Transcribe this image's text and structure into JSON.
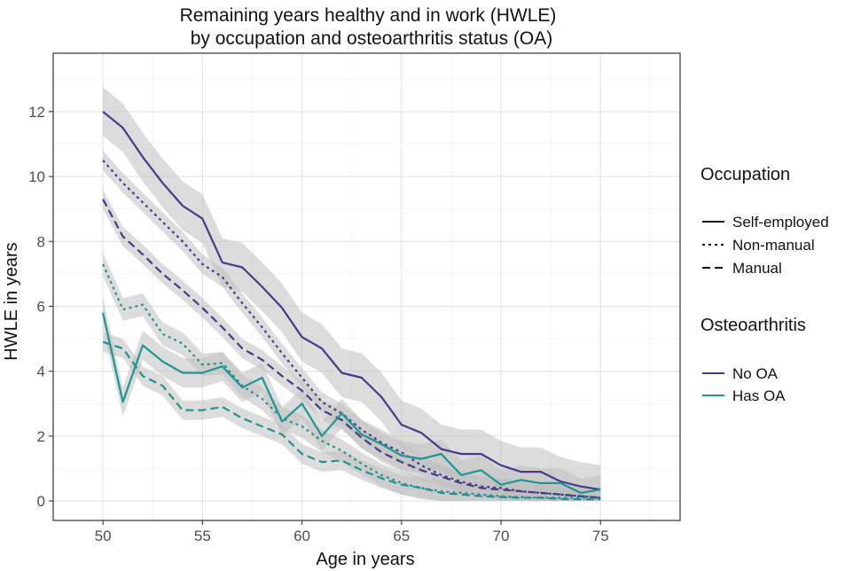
{
  "chart_data": {
    "type": "line",
    "title_lines": [
      "Remaining years healthy and in work (HWLE)",
      "by occupation and osteoarthritis status (OA)"
    ],
    "xlabel": "Age in years",
    "ylabel": "HWLE in years",
    "xlim": [
      47.5,
      79
    ],
    "ylim": [
      -0.6,
      13.8
    ],
    "xticks": [
      50,
      55,
      60,
      65,
      70,
      75
    ],
    "yticks": [
      0,
      2,
      4,
      6,
      8,
      10,
      12
    ],
    "grid": true,
    "legend_position": "right",
    "x": [
      50,
      51,
      52,
      53,
      54,
      55,
      56,
      57,
      58,
      59,
      60,
      61,
      62,
      63,
      64,
      65,
      66,
      67,
      68,
      69,
      70,
      71,
      72,
      73,
      74,
      75
    ],
    "colors": {
      "No OA": "#463a8a",
      "Has OA": "#1e9592",
      "band": "#bfbfbf",
      "frame": "#333333",
      "grid_major": "#e3e3e3",
      "grid_minor": "#f2f2f2"
    },
    "series": [
      {
        "name": "No OA, Self-employed",
        "occupation": "Self-employed",
        "oa": "No OA",
        "linetype": "solid",
        "values": [
          12.0,
          11.5,
          10.6,
          9.8,
          9.1,
          8.7,
          7.35,
          7.2,
          6.6,
          5.95,
          5.05,
          4.7,
          3.95,
          3.8,
          3.2,
          2.35,
          2.1,
          1.6,
          1.45,
          1.45,
          1.1,
          0.9,
          0.9,
          0.6,
          0.45,
          0.35
        ],
        "band": 0.75
      },
      {
        "name": "No OA, Non-manual",
        "occupation": "Non-manual",
        "oa": "No OA",
        "linetype": "dotted",
        "values": [
          10.5,
          9.8,
          9.2,
          8.6,
          8.0,
          7.3,
          6.9,
          6.1,
          5.35,
          4.55,
          3.8,
          3.05,
          2.7,
          2.2,
          1.8,
          1.5,
          1.1,
          0.8,
          0.6,
          0.45,
          0.4,
          0.3,
          0.25,
          0.2,
          0.15,
          0.1
        ],
        "band": 0.3
      },
      {
        "name": "No OA, Manual",
        "occupation": "Manual",
        "oa": "No OA",
        "linetype": "dashed",
        "values": [
          9.3,
          8.15,
          7.6,
          7.0,
          6.5,
          5.95,
          5.35,
          4.7,
          4.35,
          3.85,
          3.4,
          2.8,
          2.5,
          1.95,
          1.5,
          1.2,
          0.95,
          0.75,
          0.55,
          0.4,
          0.35,
          0.3,
          0.25,
          0.2,
          0.15,
          0.1
        ],
        "band": 0.3
      },
      {
        "name": "Has OA, Self-employed",
        "occupation": "Self-employed",
        "oa": "Has OA",
        "linetype": "solid",
        "values": [
          5.8,
          3.05,
          4.8,
          4.3,
          3.95,
          3.95,
          4.15,
          3.5,
          3.8,
          2.45,
          3.0,
          2.0,
          2.7,
          2.05,
          1.75,
          1.4,
          1.3,
          1.45,
          0.8,
          0.95,
          0.5,
          0.65,
          0.55,
          0.55,
          0.25,
          0.35
        ],
        "band": 0.45
      },
      {
        "name": "Has OA, Non-manual",
        "occupation": "Non-manual",
        "oa": "Has OA",
        "linetype": "dotted",
        "values": [
          7.3,
          5.9,
          6.05,
          5.15,
          4.85,
          4.2,
          4.25,
          3.55,
          3.15,
          2.55,
          2.3,
          1.85,
          1.55,
          1.15,
          0.8,
          0.55,
          0.4,
          0.3,
          0.25,
          0.2,
          0.15,
          0.12,
          0.1,
          0.1,
          0.1,
          0.08
        ],
        "band": 0.35
      },
      {
        "name": "Has OA, Manual",
        "occupation": "Manual",
        "oa": "Has OA",
        "linetype": "dashed",
        "values": [
          4.9,
          4.7,
          3.85,
          3.55,
          2.8,
          2.8,
          2.9,
          2.55,
          2.3,
          2.05,
          1.45,
          1.2,
          1.25,
          0.95,
          0.7,
          0.5,
          0.4,
          0.25,
          0.2,
          0.15,
          0.12,
          0.1,
          0.1,
          0.06,
          0.05,
          0.05
        ],
        "band": 0.3
      }
    ],
    "legend": {
      "occupation_title": "Occupation",
      "occupation_items": [
        {
          "label": "Self-employed",
          "linetype": "solid"
        },
        {
          "label": "Non-manual",
          "linetype": "dotted"
        },
        {
          "label": "Manual",
          "linetype": "dashed"
        }
      ],
      "oa_title": "Osteoarthritis",
      "oa_items": [
        {
          "label": "No OA",
          "color": "#463a8a"
        },
        {
          "label": "Has OA",
          "color": "#1e9592"
        }
      ]
    }
  }
}
